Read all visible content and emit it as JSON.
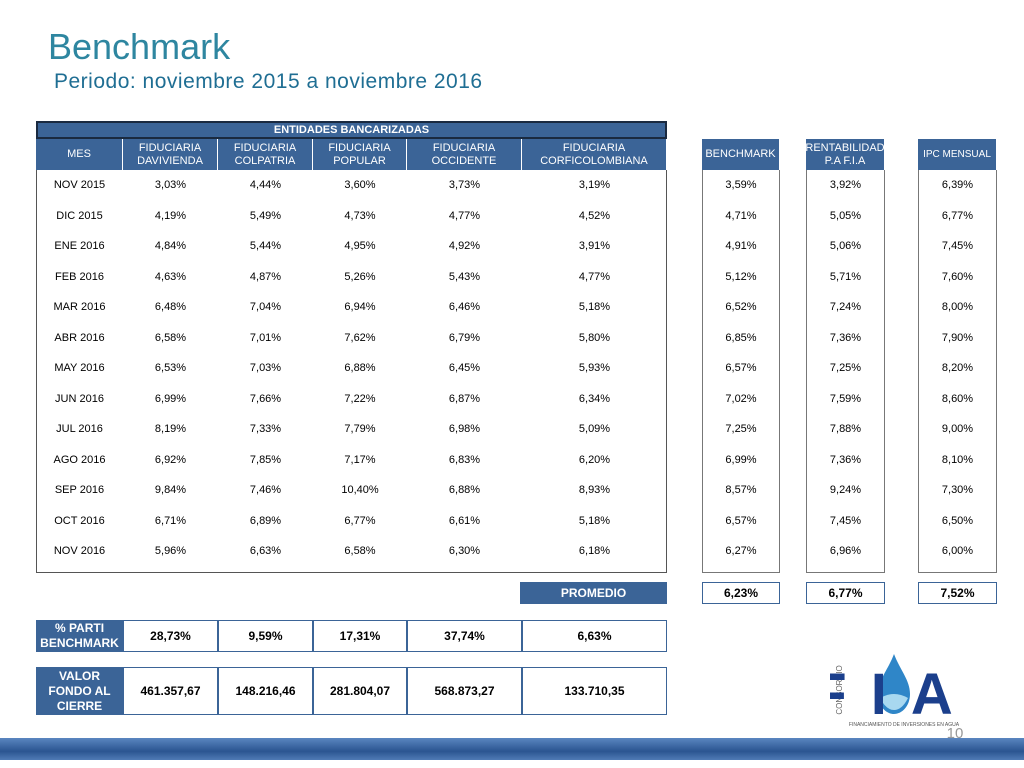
{
  "header": {
    "title": "Benchmark",
    "subtitle": "Periodo: noviembre 2015 a noviembre 2016"
  },
  "table": {
    "group_header": "ENTIDADES BANCARIZADAS",
    "columns": [
      "MES",
      "FIDUCIARIA DAVIVIENDA",
      "FIDUCIARIA COLPATRIA",
      "FIDUCIARIA POPULAR",
      "FIDUCIARIA OCCIDENTE",
      "FIDUCIARIA CORFICOLOMBIANA",
      "BENCHMARK",
      "RENTABILIDAD P.A F.I.A",
      "IPC MENSUAL"
    ],
    "rows": [
      [
        "NOV 2015",
        "3,03%",
        "4,44%",
        "3,60%",
        "3,73%",
        "3,19%",
        "3,59%",
        "3,92%",
        "6,39%"
      ],
      [
        "DIC 2015",
        "4,19%",
        "5,49%",
        "4,73%",
        "4,77%",
        "4,52%",
        "4,71%",
        "5,05%",
        "6,77%"
      ],
      [
        "ENE 2016",
        "4,84%",
        "5,44%",
        "4,95%",
        "4,92%",
        "3,91%",
        "4,91%",
        "5,06%",
        "7,45%"
      ],
      [
        "FEB 2016",
        "4,63%",
        "4,87%",
        "5,26%",
        "5,43%",
        "4,77%",
        "5,12%",
        "5,71%",
        "7,60%"
      ],
      [
        "MAR 2016",
        "6,48%",
        "7,04%",
        "6,94%",
        "6,46%",
        "5,18%",
        "6,52%",
        "7,24%",
        "8,00%"
      ],
      [
        "ABR 2016",
        "6,58%",
        "7,01%",
        "7,62%",
        "6,79%",
        "5,80%",
        "6,85%",
        "7,36%",
        "7,90%"
      ],
      [
        "MAY 2016",
        "6,53%",
        "7,03%",
        "6,88%",
        "6,45%",
        "5,93%",
        "6,57%",
        "7,25%",
        "8,20%"
      ],
      [
        "JUN 2016",
        "6,99%",
        "7,66%",
        "7,22%",
        "6,87%",
        "6,34%",
        "7,02%",
        "7,59%",
        "8,60%"
      ],
      [
        "JUL 2016",
        "8,19%",
        "7,33%",
        "7,79%",
        "6,98%",
        "5,09%",
        "7,25%",
        "7,88%",
        "9,00%"
      ],
      [
        "AGO 2016",
        "6,92%",
        "7,85%",
        "7,17%",
        "6,83%",
        "6,20%",
        "6,99%",
        "7,36%",
        "8,10%"
      ],
      [
        "SEP 2016",
        "9,84%",
        "7,46%",
        "10,40%",
        "6,88%",
        "8,93%",
        "8,57%",
        "9,24%",
        "7,30%"
      ],
      [
        "OCT 2016",
        "6,71%",
        "6,89%",
        "6,77%",
        "6,61%",
        "5,18%",
        "6,57%",
        "7,45%",
        "6,50%"
      ],
      [
        "NOV 2016",
        "5,96%",
        "6,63%",
        "6,58%",
        "6,30%",
        "6,18%",
        "6,27%",
        "6,96%",
        "6,00%"
      ]
    ]
  },
  "promedio": {
    "label": "PROMEDIO",
    "values": [
      "6,23%",
      "6,77%",
      "7,52%"
    ]
  },
  "participacion": {
    "label": "% PARTI BENCHMARK",
    "values": [
      "28,73%",
      "9,59%",
      "17,31%",
      "37,74%",
      "6,63%"
    ]
  },
  "valor_fondo": {
    "label": "VALOR FONDO AL CIERRE",
    "values": [
      "461.357,67",
      "148.216,46",
      "281.804,07",
      "568.873,27",
      "133.710,35"
    ]
  },
  "logo": {
    "side": "CONSORCIO",
    "name": "FIA",
    "tagline": "FINANCIAMIENTO DE INVERSIONES EN AGUA"
  },
  "page_number": "10"
}
